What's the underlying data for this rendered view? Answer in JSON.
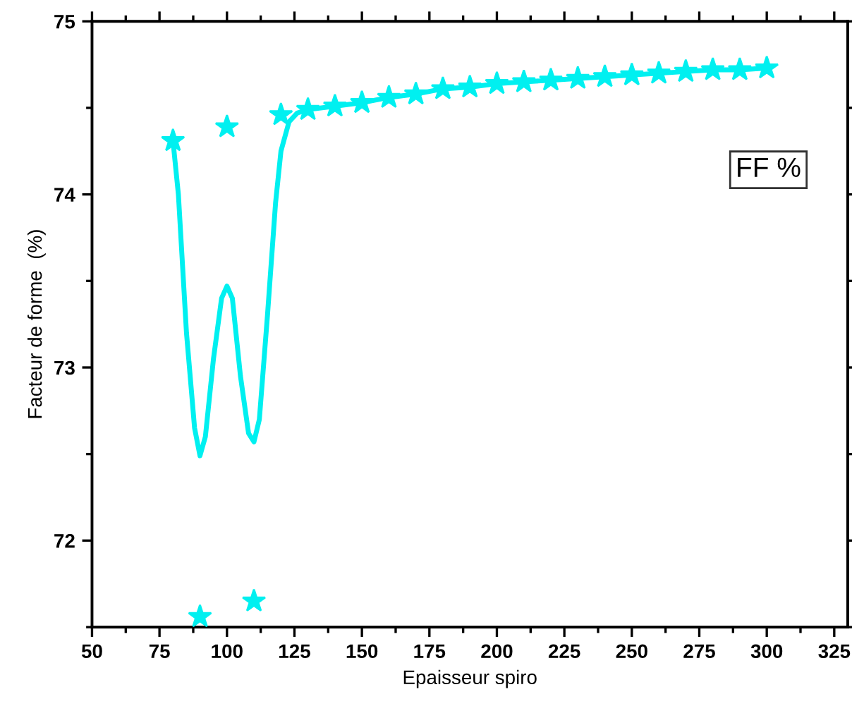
{
  "chart_data": {
    "type": "scatter",
    "xlabel": "Epaisseur spiro",
    "ylabel": "Facteur de forme  (%)",
    "annotations": [
      "FF %"
    ],
    "xlim": [
      50,
      330
    ],
    "xticks": [
      50,
      75,
      100,
      125,
      150,
      175,
      200,
      225,
      250,
      275,
      300,
      325
    ],
    "ylim": [
      71.5,
      75
    ],
    "yticks": [
      72,
      73,
      74,
      75
    ],
    "grid": false,
    "series": [
      {
        "marker": "star",
        "color": "#00f0f0",
        "x": [
          80,
          90,
          100,
          110,
          120,
          130,
          140,
          150,
          160,
          170,
          180,
          190,
          200,
          210,
          220,
          230,
          240,
          250,
          260,
          270,
          280,
          290,
          300
        ],
        "values": [
          74.31,
          71.56,
          74.39,
          71.65,
          74.46,
          74.49,
          74.51,
          74.53,
          74.56,
          74.58,
          74.61,
          74.62,
          74.64,
          74.65,
          74.66,
          74.67,
          74.68,
          74.69,
          74.7,
          74.71,
          74.72,
          74.72,
          74.73
        ]
      },
      {
        "type": "line",
        "marker": "none",
        "color": "#00f0f0",
        "line_style": "solid",
        "x": [
          80,
          82,
          85,
          88,
          90,
          92,
          95,
          98,
          100,
          102,
          105,
          108,
          110,
          112,
          115,
          118,
          120,
          123,
          126,
          130,
          140,
          150,
          160,
          170,
          180,
          190,
          200,
          210,
          220,
          230,
          240,
          250,
          260,
          270,
          280,
          290,
          300
        ],
        "values": [
          74.31,
          74.0,
          73.2,
          72.65,
          72.49,
          72.6,
          73.05,
          73.4,
          73.47,
          73.4,
          72.95,
          72.62,
          72.57,
          72.7,
          73.3,
          73.95,
          74.25,
          74.42,
          74.47,
          74.49,
          74.51,
          74.53,
          74.56,
          74.58,
          74.61,
          74.62,
          74.64,
          74.65,
          74.66,
          74.67,
          74.68,
          74.69,
          74.7,
          74.71,
          74.72,
          74.72,
          74.73
        ]
      }
    ]
  }
}
